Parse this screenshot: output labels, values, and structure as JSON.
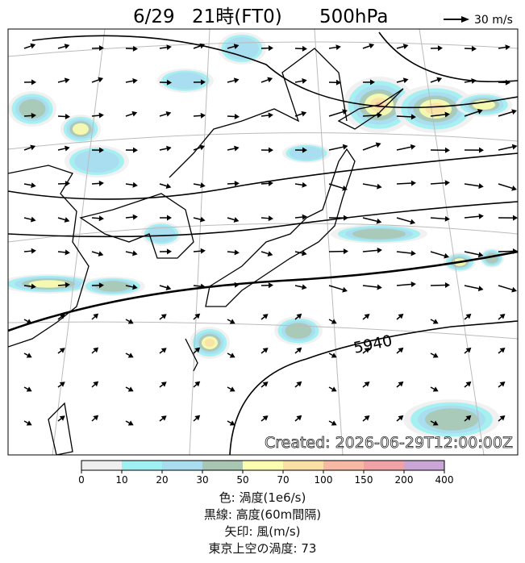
{
  "title": {
    "date": "6/29",
    "time": "21時(FT0)",
    "level": "500hPa"
  },
  "arrow_legend": "30 m/s",
  "contour_label": "5940",
  "created": "Created: 2026-06-29T12:00:00Z",
  "colorbar": {
    "ticks": [
      0,
      10,
      20,
      30,
      50,
      70,
      100,
      150,
      200,
      400
    ],
    "colors": [
      "#efefef",
      "#9ff0f2",
      "#a9dcee",
      "#a9c6b2",
      "#fdfdb0",
      "#fbe0a6",
      "#f7b8a4",
      "#f1a2a6",
      "#c9a6d6"
    ]
  },
  "captions": [
    "色: 渦度(1e6/s)",
    "黒線: 高度(60m間隔)",
    "矢印: 風(m/s)",
    "東京上空の渦度: 73"
  ]
}
